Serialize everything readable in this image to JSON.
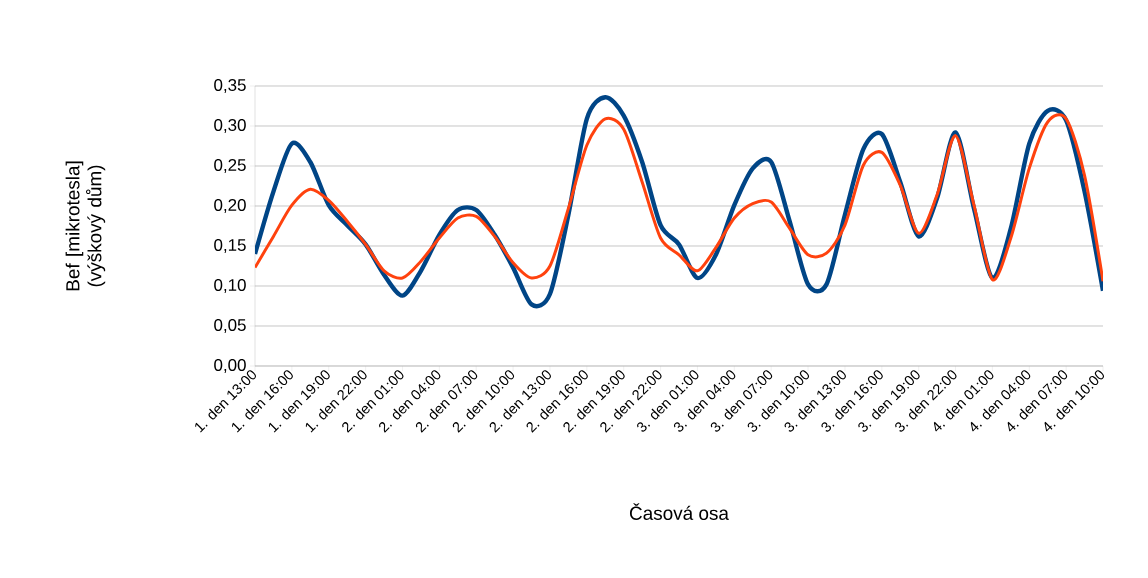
{
  "chart_data": {
    "type": "line",
    "xlabel": "Časová osa",
    "ylabel": "Bef [mikrotesla] (výškový dům)",
    "categories": [
      "1. den 13:00",
      null,
      "1. den 16:00",
      null,
      "1. den 19:00",
      null,
      "1. den 22:00",
      null,
      "2. den 01:00",
      null,
      "2. den 04:00",
      null,
      "2. den 07:00",
      null,
      "2. den 10:00",
      null,
      "2. den 13:00",
      null,
      "2. den 16:00",
      null,
      "2. den 19:00",
      null,
      "2. den 22:00",
      null,
      "3. den 01:00",
      null,
      "3. den 04:00",
      null,
      "3. den 07:00",
      null,
      "3. den 10:00",
      null,
      "3. den 13:00",
      null,
      "3. den 16:00",
      null,
      "3. den 19:00",
      null,
      "3. den 22:00",
      null,
      "4. den 01:00",
      null,
      "4. den 04:00",
      null,
      "4. den 07:00",
      null,
      "4. den 10:00"
    ],
    "series": [
      {
        "color": "#004586",
        "values": [
          0.14,
          0.218,
          0.278,
          0.255,
          0.201,
          0.176,
          0.152,
          0.114,
          0.088,
          0.119,
          0.164,
          0.195,
          0.195,
          0.164,
          0.123,
          0.077,
          0.09,
          0.189,
          0.309,
          0.336,
          0.313,
          0.255,
          0.176,
          0.152,
          0.11,
          0.139,
          0.201,
          0.247,
          0.255,
          0.181,
          0.102,
          0.102,
          0.189,
          0.271,
          0.29,
          0.23,
          0.162,
          0.21,
          0.292,
          0.197,
          0.11,
          0.172,
          0.278,
          0.319,
          0.307,
          0.218,
          0.094
        ]
      },
      {
        "color": "#ff420e",
        "values": [
          0.123,
          0.162,
          0.201,
          0.221,
          0.207,
          0.181,
          0.152,
          0.119,
          0.11,
          0.131,
          0.16,
          0.185,
          0.187,
          0.162,
          0.129,
          0.11,
          0.125,
          0.197,
          0.276,
          0.309,
          0.296,
          0.23,
          0.16,
          0.139,
          0.119,
          0.148,
          0.185,
          0.203,
          0.205,
          0.172,
          0.139,
          0.141,
          0.176,
          0.251,
          0.267,
          0.226,
          0.166,
          0.214,
          0.288,
          0.201,
          0.108,
          0.16,
          0.247,
          0.305,
          0.309,
          0.238,
          0.106
        ]
      }
    ],
    "ylim": [
      0,
      0.35
    ],
    "yticks": [
      {
        "value": 0,
        "label": "0,00"
      },
      {
        "value": 0.05,
        "label": "0,05"
      },
      {
        "value": 0.1,
        "label": "0,10"
      },
      {
        "value": 0.15,
        "label": "0,15"
      },
      {
        "value": 0.2,
        "label": "0,20"
      },
      {
        "value": 0.25,
        "label": "0,25"
      },
      {
        "value": 0.3,
        "label": "0,30"
      },
      {
        "value": 0.35,
        "label": "0,35"
      }
    ],
    "grid": "y",
    "legend": false,
    "marker": "none",
    "line_style": "solid"
  }
}
